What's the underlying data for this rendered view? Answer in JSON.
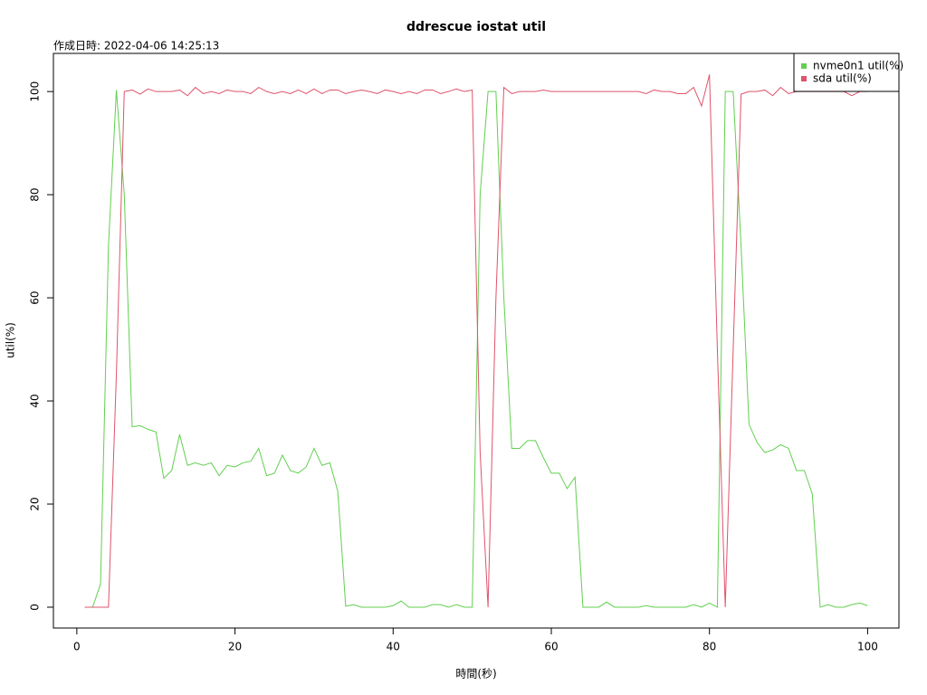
{
  "chart_data": {
    "type": "line",
    "title": "ddrescue iostat util",
    "subtitle": "作成日時: 2022-04-06 14:25:13",
    "x_label": "時間(秒)",
    "y_label": "util(%)",
    "x": [
      1,
      2,
      3,
      4,
      5,
      6,
      7,
      8,
      9,
      10,
      11,
      12,
      13,
      14,
      15,
      16,
      17,
      18,
      19,
      20,
      21,
      22,
      23,
      24,
      25,
      26,
      27,
      28,
      29,
      30,
      31,
      32,
      33,
      34,
      35,
      36,
      37,
      38,
      39,
      40,
      41,
      42,
      43,
      44,
      45,
      46,
      47,
      48,
      49,
      50,
      51,
      52,
      53,
      54,
      55,
      56,
      57,
      58,
      59,
      60,
      61,
      62,
      63,
      64,
      65,
      66,
      67,
      68,
      69,
      70,
      71,
      72,
      73,
      74,
      75,
      76,
      77,
      78,
      79,
      80,
      81,
      82,
      83,
      84,
      85,
      86,
      87,
      88,
      89,
      90,
      91,
      92,
      93,
      94,
      95,
      96,
      97,
      98,
      99,
      100
    ],
    "series": [
      {
        "name": "nvme0n1 util(%)",
        "color": "#61d04f",
        "values": [
          0,
          0,
          4.5,
          70,
          100.3,
          80,
          35,
          35.2,
          34.5,
          34,
          25,
          26.5,
          33.5,
          27.5,
          28,
          27.5,
          28,
          25.5,
          27.5,
          27.2,
          28,
          28.3,
          30.8,
          25.5,
          26,
          29.5,
          26.5,
          26,
          27.2,
          30.8,
          27.5,
          28,
          22.5,
          0.2,
          0.5,
          0,
          0,
          0,
          0,
          0.3,
          1.2,
          0,
          0,
          0,
          0.5,
          0.5,
          0,
          0.5,
          0,
          0,
          80,
          100,
          100,
          60,
          30.8,
          30.8,
          32.3,
          32.3,
          29,
          26,
          26,
          23,
          25.2,
          0,
          0,
          0,
          1,
          0,
          0,
          0,
          0,
          0.3,
          0,
          0,
          0,
          0,
          0,
          0.5,
          0,
          0.8,
          0,
          100,
          100,
          70,
          35.5,
          32,
          30,
          30.5,
          31.5,
          30.8,
          26.5,
          26.5,
          22,
          0,
          0.5,
          0,
          0,
          0.5,
          0.8,
          0.3
        ]
      },
      {
        "name": "sda util(%)",
        "color": "#df536b",
        "values": [
          0,
          0,
          0,
          0,
          45,
          100,
          100.3,
          99.5,
          100.5,
          100,
          100,
          100,
          100.3,
          99.2,
          100.8,
          99.6,
          100,
          99.6,
          100.3,
          100,
          100,
          99.6,
          100.8,
          100,
          99.6,
          100,
          99.6,
          100.3,
          99.6,
          100.5,
          99.6,
          100.3,
          100.3,
          99.6,
          100,
          100.3,
          100,
          99.6,
          100.3,
          100,
          99.6,
          100,
          99.6,
          100.3,
          100.3,
          99.6,
          100,
          100.5,
          100,
          100.3,
          30,
          0,
          60,
          100.8,
          99.6,
          100,
          100,
          100,
          100.3,
          100,
          100,
          100,
          100,
          100,
          100,
          100,
          100,
          100,
          100,
          100,
          100,
          99.6,
          100.3,
          100,
          100,
          99.6,
          99.6,
          100.8,
          97.2,
          103.3,
          50,
          0,
          50,
          99.5,
          100,
          100,
          100.3,
          99.2,
          100.8,
          99.6,
          100,
          100,
          100,
          100,
          100,
          100,
          100,
          99.2,
          100,
          100
        ]
      }
    ],
    "xlim": [
      -2.96,
      103.96
    ],
    "ylim": [
      -4.04,
      107.4
    ],
    "xticks": [
      0,
      20,
      40,
      60,
      80,
      100
    ],
    "yticks": [
      0,
      20,
      40,
      60,
      80,
      100
    ],
    "grid": false,
    "legend": "topright"
  }
}
